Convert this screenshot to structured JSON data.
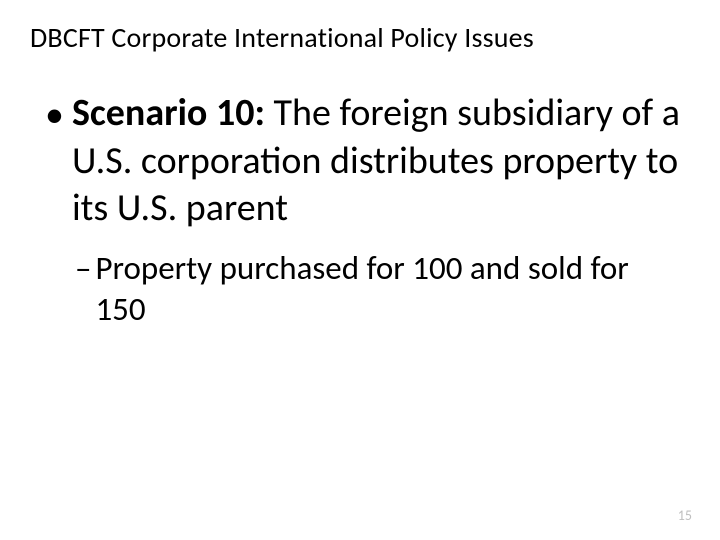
{
  "slide": {
    "title": "DBCFT Corporate International Policy Issues",
    "bullet": {
      "lead": "Scenario 10:",
      "text": "  The foreign subsidiary of a U.S. corporation distributes property to its U.S. parent"
    },
    "subbullet": {
      "text": "Property purchased for 100 and sold for 150"
    },
    "page_number": "15"
  },
  "styling": {
    "background_color": "#ffffff",
    "text_color": "#000000",
    "page_number_color": "#bfbfbf",
    "title_fontsize": 28,
    "bullet_fontsize": 38,
    "subbullet_fontsize": 33,
    "page_number_fontsize": 14,
    "font_family": "Calibri"
  }
}
